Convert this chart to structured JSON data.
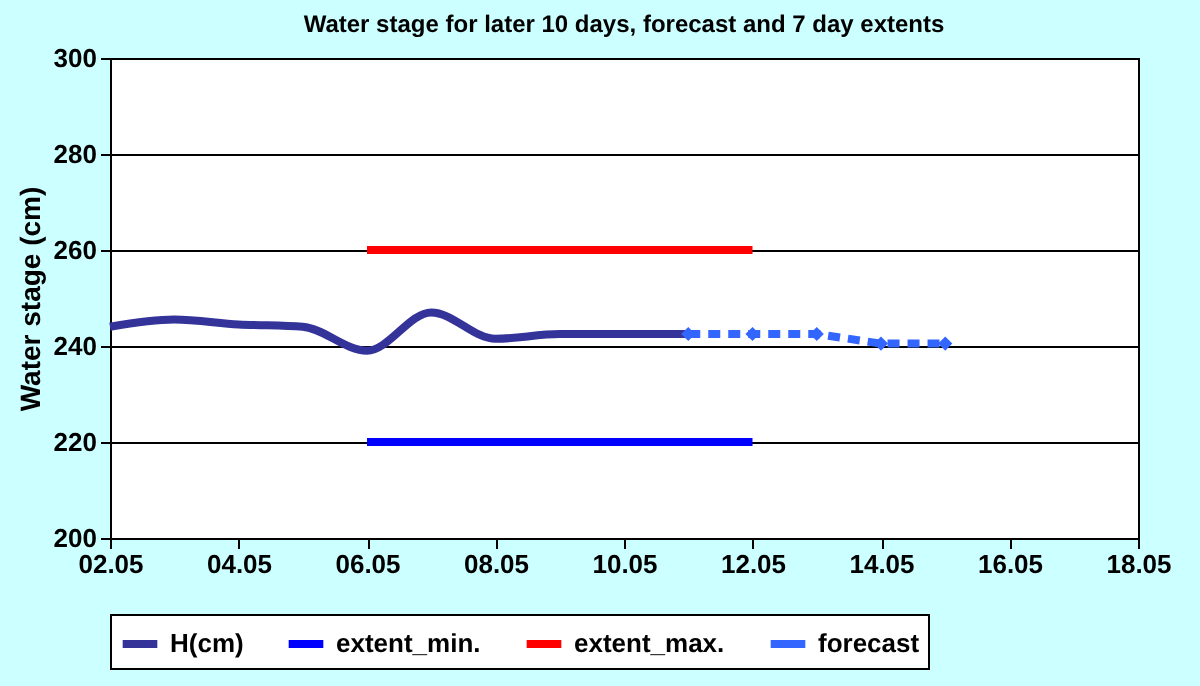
{
  "chart_data": {
    "type": "line",
    "title": "Water stage for later 10 days, forecast and 7 day extents",
    "ylabel": "Water stage (cm)",
    "xlim": [
      "--05-02",
      "--05-18"
    ],
    "xticks": [
      {
        "value": "--05-02",
        "label": "02.05"
      },
      {
        "value": "--05-04",
        "label": "04.05"
      },
      {
        "value": "--05-06",
        "label": "06.05"
      },
      {
        "value": "--05-08",
        "label": "08.05"
      },
      {
        "value": "--05-10",
        "label": "10.05"
      },
      {
        "value": "--05-12",
        "label": "12.05"
      },
      {
        "value": "--05-14",
        "label": "14.05"
      },
      {
        "value": "--05-16",
        "label": "16.05"
      },
      {
        "value": "--05-18",
        "label": "18.05"
      }
    ],
    "ylim": [
      200,
      300
    ],
    "yticks": [
      200,
      220,
      240,
      260,
      280,
      300
    ],
    "grid": "y",
    "legend": "bottom",
    "series": [
      {
        "name": "H(cm)",
        "color": "#333399",
        "x": [
          "--05-02",
          "--05-03",
          "--05-04",
          "--05-05",
          "--05-06",
          "--05-07",
          "--05-08",
          "--05-09",
          "--05-10",
          "--05-11"
        ],
        "values": [
          244,
          245.5,
          244.5,
          244,
          239,
          247,
          241.5,
          242.5,
          242.5,
          242.5
        ],
        "line_style": "solid",
        "marker": "none"
      },
      {
        "name": "extent_min.",
        "color": "#0000ff",
        "x": [
          "--05-06",
          "--05-12"
        ],
        "values": [
          220,
          220
        ],
        "line_style": "solid",
        "marker": "none"
      },
      {
        "name": "extent_max.",
        "color": "#ff0000",
        "x": [
          "--05-06",
          "--05-12"
        ],
        "values": [
          260,
          260
        ],
        "line_style": "solid",
        "marker": "none"
      },
      {
        "name": "forecast",
        "color": "#3366ff",
        "x": [
          "--05-11",
          "--05-12",
          "--05-13",
          "--05-14",
          "--05-15"
        ],
        "values": [
          242.5,
          242.5,
          242.5,
          240.5,
          240.5
        ],
        "line_style": "dashed",
        "marker": "diamond"
      }
    ]
  }
}
